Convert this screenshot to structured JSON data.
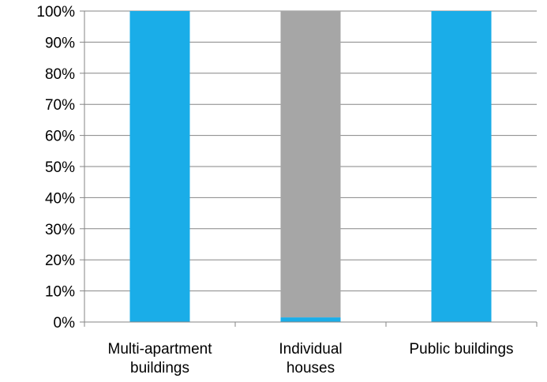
{
  "chart_data": {
    "type": "bar",
    "stacked": true,
    "percent_stacked": true,
    "categories": [
      [
        "Multi-apartment",
        "buildings"
      ],
      [
        "Individual",
        "houses"
      ],
      [
        "Public buildings"
      ]
    ],
    "series": [
      {
        "color": "#1AADE8",
        "values": [
          100,
          1.5,
          100
        ]
      },
      {
        "color": "#A6A6A6",
        "values": [
          0,
          98.5,
          0
        ]
      }
    ],
    "yticks": [
      "0%",
      "10%",
      "20%",
      "30%",
      "40%",
      "50%",
      "60%",
      "70%",
      "80%",
      "90%",
      "100%"
    ],
    "ylim": [
      0,
      100
    ],
    "grid": true,
    "legend": "none"
  }
}
